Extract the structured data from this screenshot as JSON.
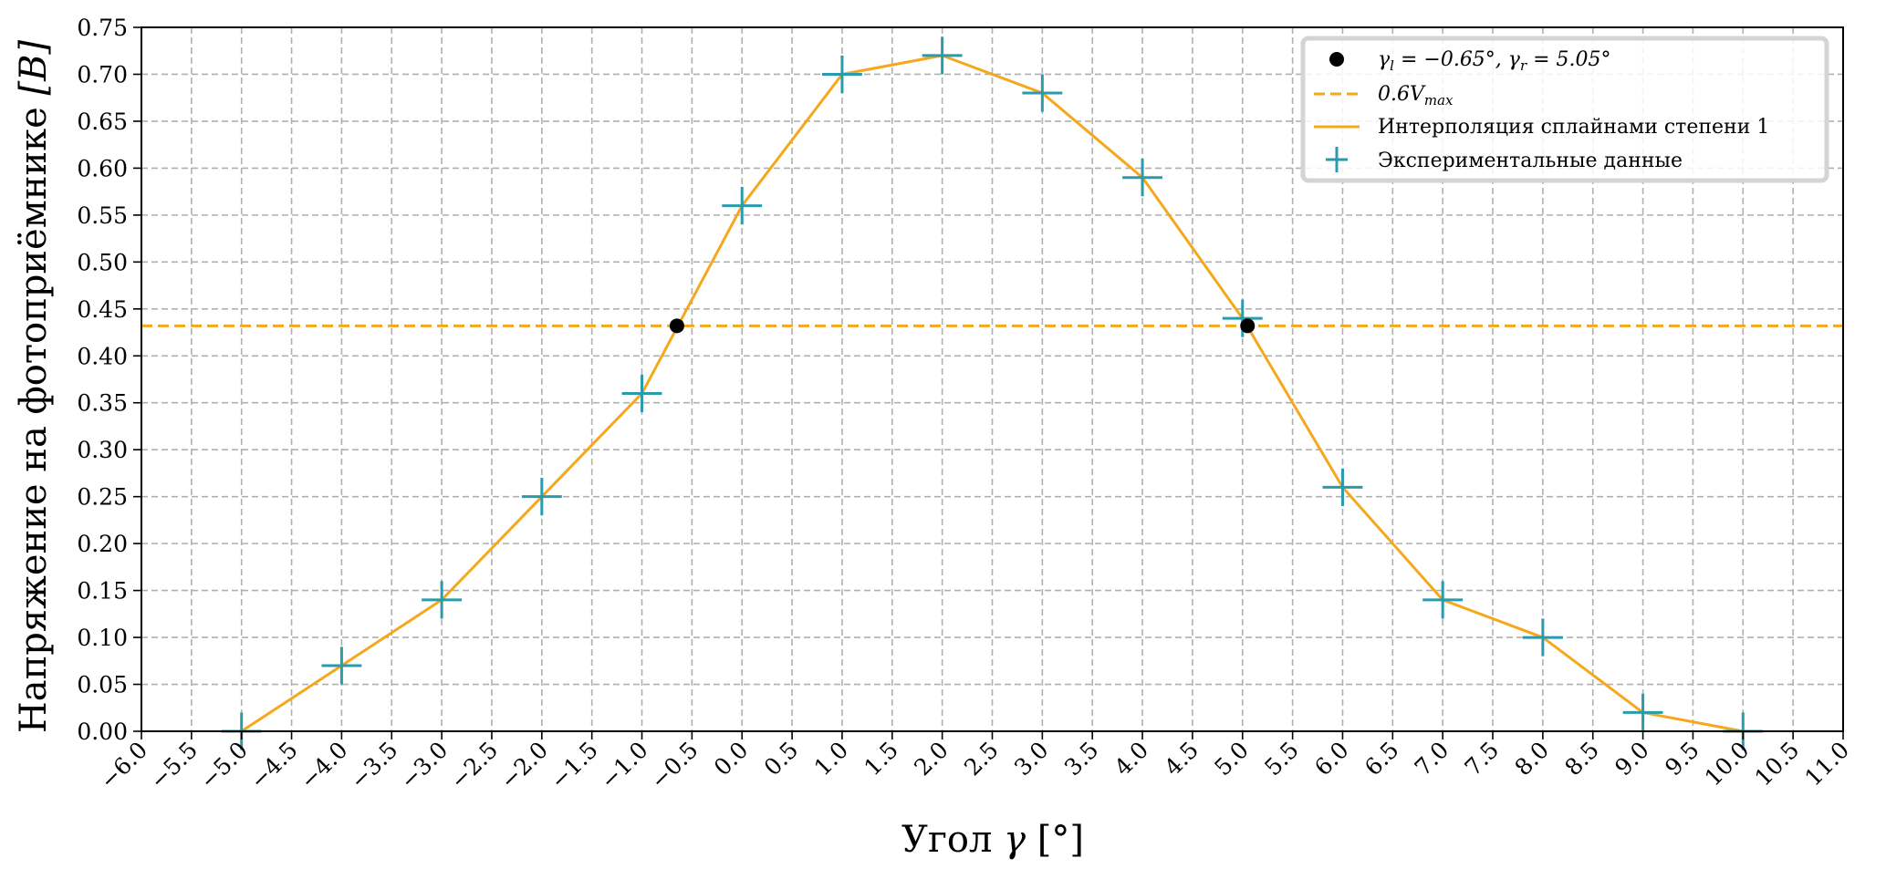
{
  "chart_data": {
    "type": "line",
    "xlabel": "Угол γ [°]",
    "ylabel": "Напряжение на фотоприёмнике [B]",
    "xlim": [
      -6.0,
      11.0
    ],
    "ylim": [
      0.0,
      0.75
    ],
    "x_ticks": [
      -6.0,
      -5.5,
      -5.0,
      -4.5,
      -4.0,
      -3.5,
      -3.0,
      -2.5,
      -2.0,
      -1.5,
      -1.0,
      -0.5,
      0.0,
      0.5,
      1.0,
      1.5,
      2.0,
      2.5,
      3.0,
      3.5,
      4.0,
      4.5,
      5.0,
      5.5,
      6.0,
      6.5,
      7.0,
      7.5,
      8.0,
      8.5,
      9.0,
      9.5,
      10.0,
      10.5,
      11.0
    ],
    "x_tick_labels": [
      "−6.0",
      "−5.5",
      "−5.0",
      "−4.5",
      "−4.0",
      "−3.5",
      "−3.0",
      "−2.5",
      "−2.0",
      "−1.5",
      "−1.0",
      "−0.5",
      "0.0",
      "0.5",
      "1.0",
      "1.5",
      "2.0",
      "2.5",
      "3.0",
      "3.5",
      "4.0",
      "4.5",
      "5.0",
      "5.5",
      "6.0",
      "6.5",
      "7.0",
      "7.5",
      "8.0",
      "8.5",
      "9.0",
      "9.5",
      "10.0",
      "10.5",
      "11.0"
    ],
    "y_ticks": [
      0.0,
      0.05,
      0.1,
      0.15,
      0.2,
      0.25,
      0.3,
      0.35,
      0.4,
      0.45,
      0.5,
      0.55,
      0.6,
      0.65,
      0.7,
      0.75
    ],
    "y_tick_labels": [
      "0.00",
      "0.05",
      "0.10",
      "0.15",
      "0.20",
      "0.25",
      "0.30",
      "0.35",
      "0.40",
      "0.45",
      "0.50",
      "0.55",
      "0.60",
      "0.65",
      "0.70",
      "0.75"
    ],
    "grid": true,
    "legend_position": "top-right",
    "series": [
      {
        "name": "Экспериментальные данные",
        "kind": "errorbar",
        "color": "#2a9bad",
        "x": [
          -5,
          -4,
          -3,
          -2,
          -1,
          0,
          1,
          2,
          3,
          4,
          5,
          6,
          7,
          8,
          9,
          10
        ],
        "y": [
          0.0,
          0.07,
          0.14,
          0.25,
          0.36,
          0.56,
          0.7,
          0.72,
          0.68,
          0.59,
          0.44,
          0.26,
          0.14,
          0.1,
          0.02,
          0.0
        ],
        "x_err": 0.2,
        "y_err": 0.02
      },
      {
        "name": "Интерполяция сплайнами степени 1",
        "kind": "line",
        "color": "#f5a81c",
        "x": [
          -5,
          -4,
          -3,
          -2,
          -1,
          0,
          1,
          2,
          3,
          4,
          5,
          6,
          7,
          8,
          9,
          10
        ],
        "y": [
          0.0,
          0.07,
          0.14,
          0.25,
          0.36,
          0.56,
          0.7,
          0.72,
          0.68,
          0.59,
          0.44,
          0.26,
          0.14,
          0.1,
          0.02,
          0.0
        ]
      },
      {
        "name": "0.6V_max",
        "legend_label": {
          "base": "0.6V",
          "sub": "max"
        },
        "kind": "hline",
        "color": "#f5a81c",
        "y": 0.432
      },
      {
        "name": "γ_l = −0.65°, γ_r = 5.05°",
        "legend_label": {
          "p1": "γ",
          "s1": "l",
          "p2": " = −0.65°, γ",
          "s2": "r",
          "p3": " = 5.05°"
        },
        "kind": "points",
        "color": "#000000",
        "x": [
          -0.65,
          5.05
        ],
        "y": [
          0.432,
          0.432
        ]
      }
    ]
  }
}
